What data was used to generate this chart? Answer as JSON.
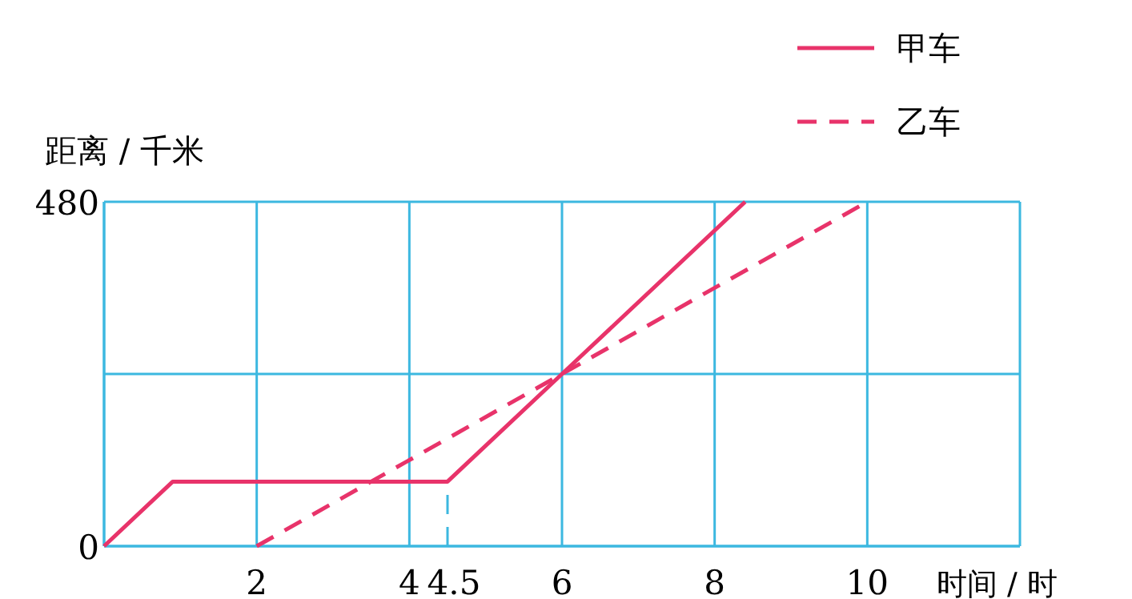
{
  "chart_data": {
    "type": "line",
    "xlabel": "时间 / 时",
    "ylabel": "距离 / 千米",
    "xlim": [
      0,
      12
    ],
    "ylim": [
      0,
      480
    ],
    "xticks": [
      {
        "value": 0,
        "label": null
      },
      2,
      4,
      6,
      8,
      10,
      {
        "value": 12,
        "label": null
      }
    ],
    "yticks": [
      0,
      {
        "value": 240,
        "label": null
      },
      480
    ],
    "grid": true,
    "legend": "top right",
    "marker": "none",
    "ref_lines": [
      {
        "axis": "x",
        "value": 4.5,
        "label": "4.5",
        "line_style": "dashed",
        "color": "#3cb8e0"
      }
    ],
    "series": [
      {
        "name": "甲车",
        "color": "#e8336a",
        "line_style": "solid",
        "x": [
          0,
          0.9,
          4.5,
          6,
          8.4
        ],
        "values": [
          0,
          90,
          90,
          240,
          480
        ]
      },
      {
        "name": "乙车",
        "color": "#e8336a",
        "line_style": "dashed",
        "x": [
          2,
          10
        ],
        "values": [
          0,
          480
        ]
      }
    ]
  }
}
